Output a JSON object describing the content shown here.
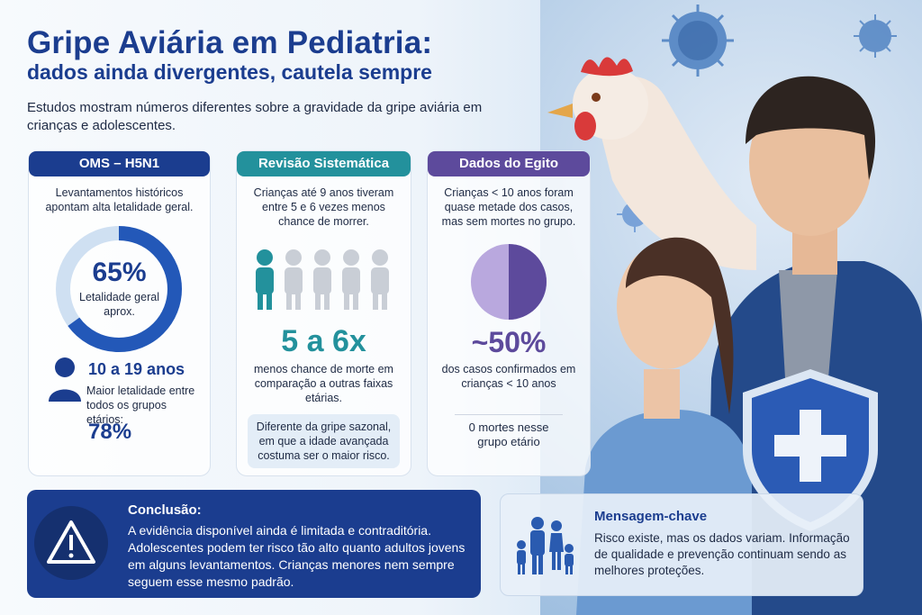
{
  "header": {
    "title": "Gripe Aviária em Pediatria:",
    "subtitle": "dados ainda divergentes, cautela sempre",
    "intro": "Estudos mostram números diferentes sobre a gravidade da gripe aviária em crianças e adolescentes."
  },
  "card_oms": {
    "heading": "OMS – H5N1",
    "text": "Levantamentos históricos apontam alta letalidade geral.",
    "donut_value": "65%",
    "donut_fraction": 0.65,
    "donut_label": "Letalidade geral aprox.",
    "age_range": "10 a 19 anos",
    "age_text": "Maior letalidade entre todos os grupos etários:",
    "age_value": "78%",
    "color": "#1b3d8f"
  },
  "card_review": {
    "heading": "Revisão Sistemática",
    "text": "Crianças até 9 anos tiveram entre 5 e 6 vezes menos chance de morrer.",
    "big_value": "5 a 6x",
    "big_text": "menos chance de morte em comparação a outras faixas etárias.",
    "note": "Diferente da gripe sazonal, em que a idade avançada costuma ser o maior risco.",
    "color": "#23919c"
  },
  "card_egypt": {
    "heading": "Dados do Egito",
    "text": "Crianças < 10 anos foram quase metade dos casos, mas sem mortes no grupo.",
    "big_value": "~50%",
    "big_text": "dos casos confirmados em crianças < 10 anos",
    "deaths_text": "0 mortes nesse grupo etário",
    "pie_fraction": 0.5,
    "color": "#5d4a9c"
  },
  "conclusion": {
    "heading": "Conclusão:",
    "body": "A evidência disponível ainda é limitada e contraditória. Adolescentes podem ter risco tão alto quanto adultos jovens em alguns levantamentos. Crianças menores nem sempre seguem esse mesmo padrão."
  },
  "key_message": {
    "heading": "Mensagem-chave",
    "body": "Risco existe, mas os dados variam. Informação de qualidade e prevenção continuam sendo as melhores proteções."
  },
  "icons": [
    "virus-icon",
    "chicken-icon",
    "person-icon",
    "people-icon",
    "warning-icon",
    "family-icon",
    "shield-cross-icon"
  ]
}
